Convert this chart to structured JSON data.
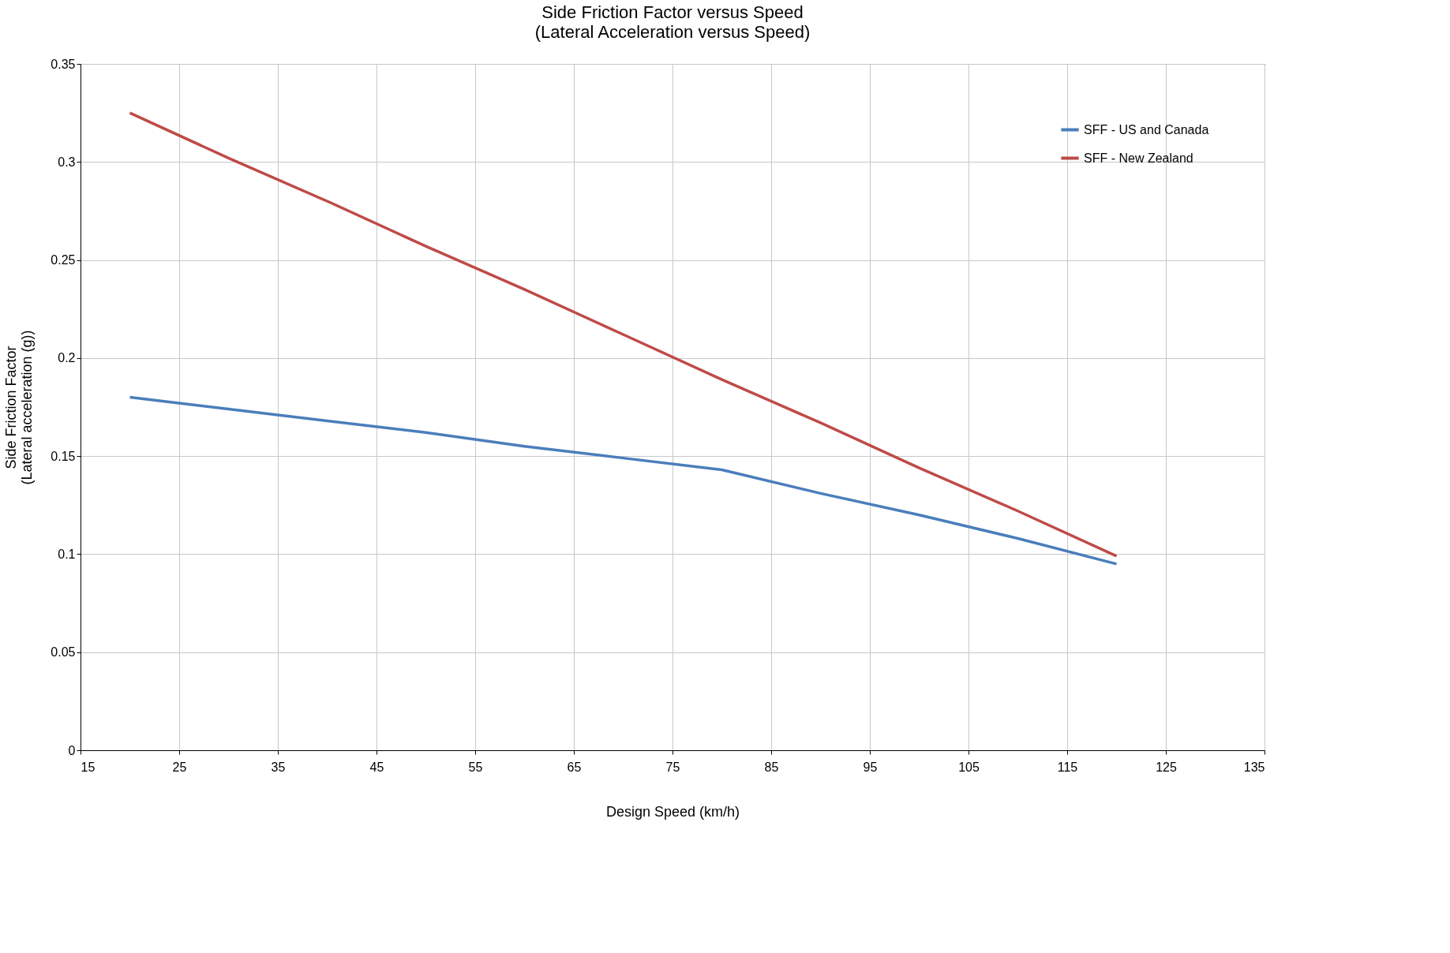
{
  "chart_data": {
    "type": "line",
    "title": "Side Friction Factor versus Speed",
    "subtitle": "(Lateral Acceleration versus Speed)",
    "xlabel": "Design Speed (km/h)",
    "ylabel": "Side Friction Factor\n(Lateral acceleration (g))",
    "x": [
      20,
      30,
      40,
      50,
      60,
      70,
      80,
      90,
      100,
      110,
      120
    ],
    "series": [
      {
        "name": "SFF - US and Canada",
        "color": "#4a7ebb",
        "values": [
          0.18,
          0.174,
          0.168,
          0.162,
          0.155,
          0.149,
          0.143,
          0.131,
          0.12,
          0.108,
          0.095
        ]
      },
      {
        "name": "SFF - New Zealand",
        "color": "#be4b48",
        "values": [
          0.325,
          0.302,
          0.28,
          0.257,
          0.235,
          0.212,
          0.189,
          0.167,
          0.144,
          0.122,
          0.099
        ]
      }
    ],
    "xlim": [
      15,
      135
    ],
    "xticks": [
      15,
      25,
      35,
      45,
      55,
      65,
      75,
      85,
      95,
      105,
      115,
      125,
      135
    ],
    "ylim": [
      0,
      0.35
    ],
    "yticks": [
      0,
      0.05,
      0.1,
      0.15,
      0.2,
      0.25,
      0.3,
      0.35
    ],
    "grid": true,
    "legend": "top right",
    "marker": "none",
    "line_style": "solid"
  }
}
